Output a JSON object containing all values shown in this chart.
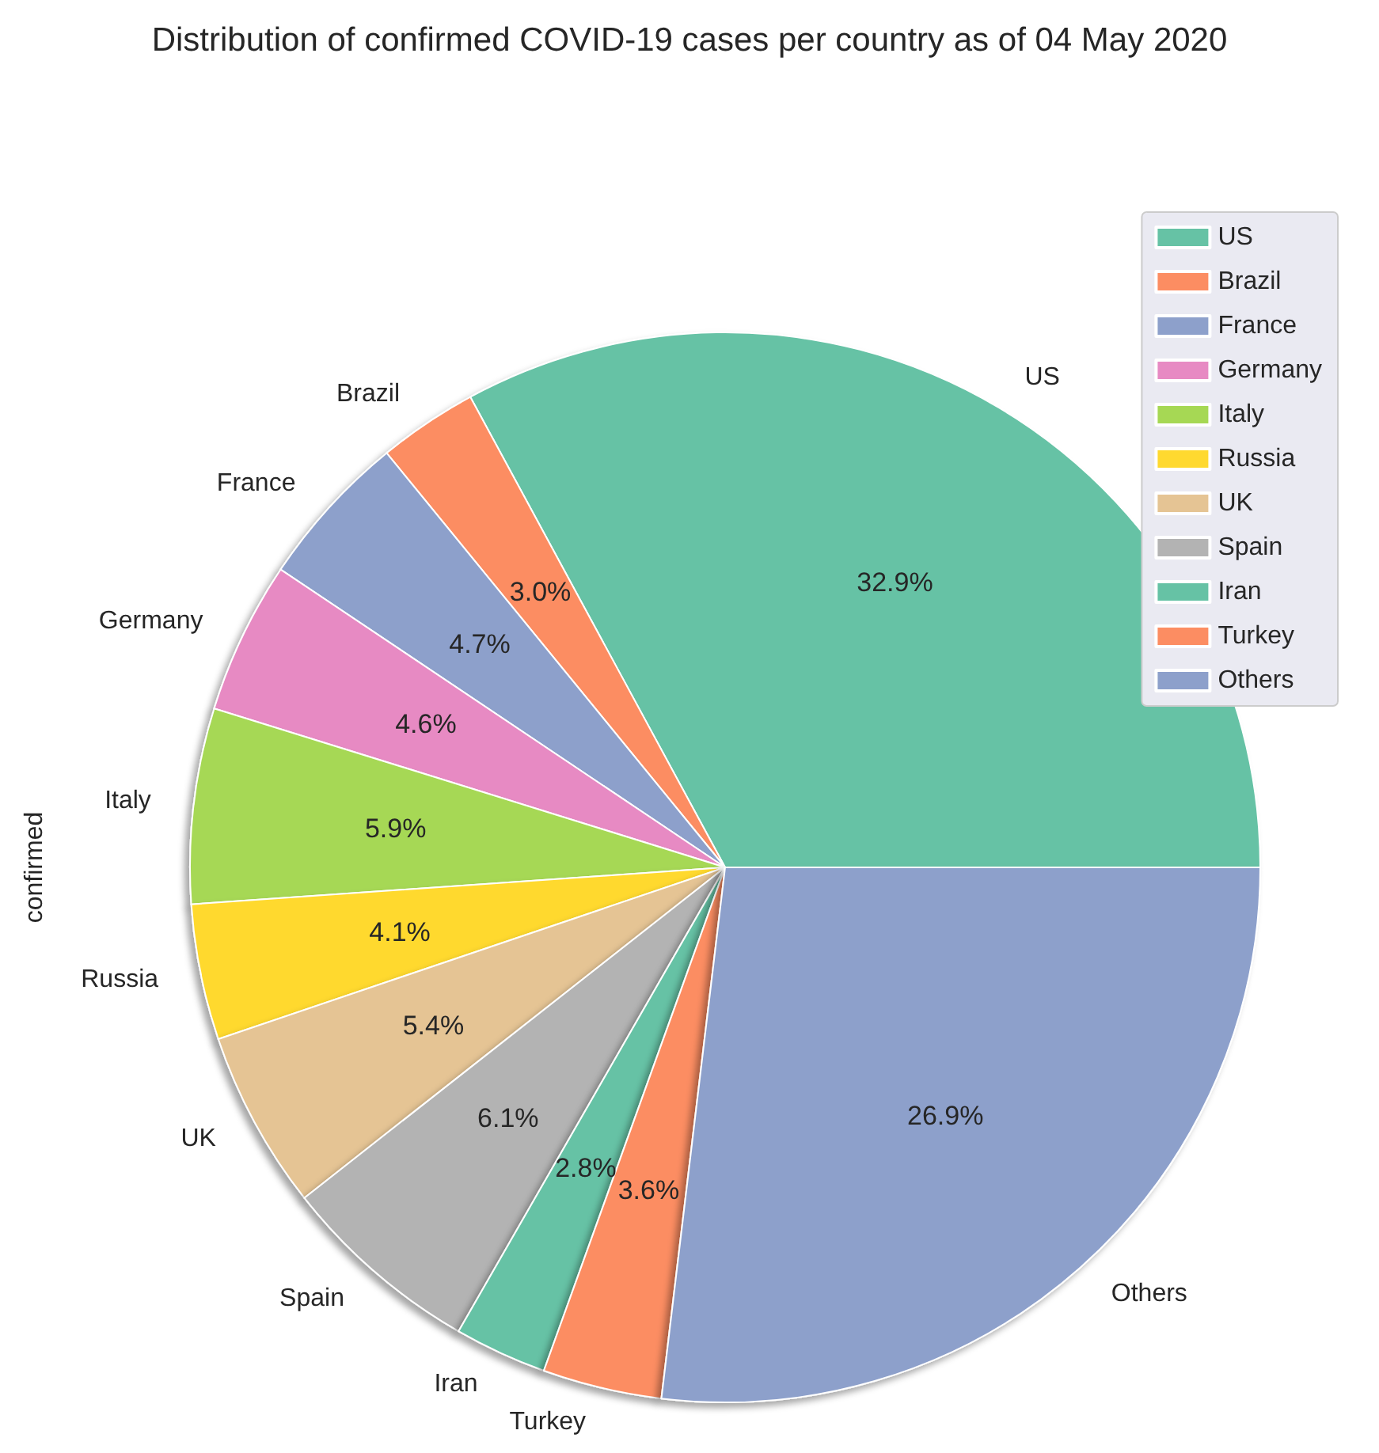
{
  "chart_data": {
    "type": "pie",
    "title": "Distribution of confirmed COVID-19 cases per country as of 04 May 2020",
    "ylabel": "confirmed",
    "categories": [
      "US",
      "Brazil",
      "France",
      "Germany",
      "Italy",
      "Russia",
      "UK",
      "Spain",
      "Iran",
      "Turkey",
      "Others"
    ],
    "values": [
      32.9,
      3.0,
      4.7,
      4.6,
      5.9,
      4.1,
      5.4,
      6.1,
      2.8,
      3.6,
      26.9
    ],
    "value_labels": [
      "32.9%",
      "3.0%",
      "4.7%",
      "4.6%",
      "5.9%",
      "4.1%",
      "5.4%",
      "6.1%",
      "2.8%",
      "3.6%",
      "26.9%"
    ],
    "colors": [
      "#66c2a5",
      "#fc8d62",
      "#8da0cb",
      "#e78ac3",
      "#a6d854",
      "#ffd92f",
      "#e5c494",
      "#b3b3b3",
      "#66c2a5",
      "#fc8d62",
      "#8da0cb"
    ],
    "legend": "top right"
  }
}
